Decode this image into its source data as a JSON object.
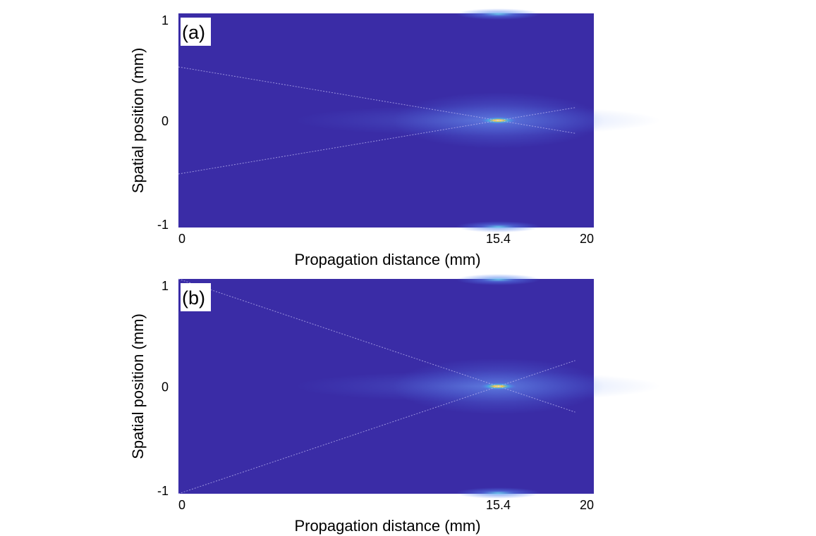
{
  "chart_data": [
    {
      "type": "heatmap",
      "panel_label": "(a)",
      "xlabel": "Propagation distance (mm)",
      "ylabel": "Spatial position (mm)",
      "xlim": [
        0,
        20
      ],
      "ylim": [
        -1,
        1
      ],
      "x_ticks": [
        0,
        15.4,
        20
      ],
      "x_tick_labels": [
        "0",
        "15.4",
        "20"
      ],
      "y_ticks": [
        1,
        0,
        -1
      ],
      "y_tick_labels": [
        "1",
        "0",
        "-1"
      ],
      "focus": {
        "x": 15.4,
        "y": 0
      },
      "rays": [
        {
          "from": [
            0,
            0.5
          ],
          "to": [
            19.1,
            -0.12
          ]
        },
        {
          "from": [
            0,
            -0.5
          ],
          "to": [
            19.1,
            0.12
          ]
        }
      ],
      "colors": {
        "background": "#3a2ca6",
        "glow": "#4f7af0",
        "hot": "#ffe14a"
      }
    },
    {
      "type": "heatmap",
      "panel_label": "(b)",
      "xlabel": "Propagation distance (mm)",
      "ylabel": "Spatial position (mm)",
      "xlim": [
        0,
        20
      ],
      "ylim": [
        -1,
        1
      ],
      "x_ticks": [
        0,
        15.4,
        20
      ],
      "x_tick_labels": [
        "0",
        "15.4",
        "20"
      ],
      "y_ticks": [
        1,
        0,
        -1
      ],
      "y_tick_labels": [
        "1",
        "0",
        "-1"
      ],
      "focus": {
        "x": 15.4,
        "y": 0
      },
      "rays": [
        {
          "from": [
            0,
            1.0
          ],
          "to": [
            19.1,
            -0.24
          ]
        },
        {
          "from": [
            0,
            -1.0
          ],
          "to": [
            19.1,
            0.24
          ]
        }
      ],
      "colors": {
        "background": "#3a2ca6",
        "glow": "#4f7af0",
        "hot": "#ffe14a"
      }
    }
  ]
}
